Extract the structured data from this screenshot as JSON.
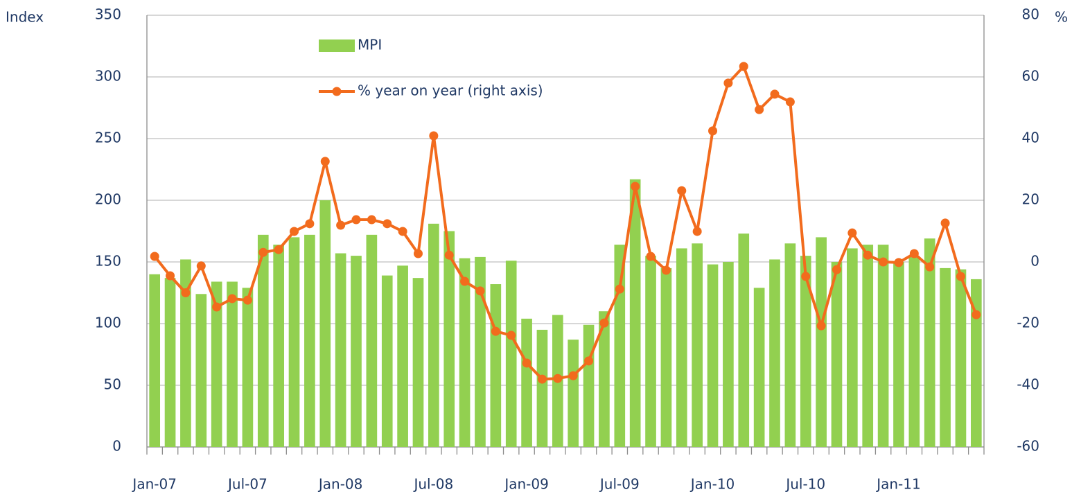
{
  "chart_data": {
    "type": "bar_line",
    "y_label": "Index",
    "y2_label": "%",
    "categories": [
      "Jan-07",
      null,
      null,
      null,
      null,
      null,
      "Jul-07",
      null,
      null,
      null,
      null,
      null,
      "Jan-08",
      null,
      null,
      null,
      null,
      null,
      "Jul-08",
      null,
      null,
      null,
      null,
      null,
      "Jan-09",
      null,
      null,
      null,
      null,
      null,
      "Jul-09",
      null,
      null,
      null,
      null,
      null,
      "Jan-10",
      null,
      null,
      null,
      null,
      null,
      "Jul-10",
      null,
      null,
      null,
      null,
      null,
      "Jan-11",
      null,
      null,
      null,
      null,
      null
    ],
    "series": [
      {
        "name": "MPI",
        "type": "bar",
        "color": "#92d050",
        "axis": "y",
        "values": [
          140,
          137,
          152,
          124,
          134,
          134,
          129,
          172,
          164,
          170,
          172,
          200,
          157,
          155,
          172,
          139,
          147,
          137,
          181,
          175,
          153,
          154,
          132,
          151,
          104,
          95,
          107,
          87,
          99,
          110,
          164,
          217,
          155,
          145,
          161,
          165,
          148,
          150,
          173,
          129,
          152,
          165,
          155,
          170,
          150,
          161,
          164,
          164,
          150,
          155,
          169,
          145,
          144,
          136
        ]
      },
      {
        "name": "% year on year (right axis)",
        "type": "line",
        "color": "#f26b1d",
        "axis": "y2",
        "values": [
          1.8,
          -4.5,
          -10,
          -1.3,
          -14.6,
          -11.9,
          -12.4,
          3.1,
          4,
          9.9,
          12.4,
          32.6,
          11.9,
          13.7,
          13.7,
          12.4,
          9.9,
          2.7,
          40.9,
          2.2,
          -6.3,
          -9.4,
          -22.5,
          -23.8,
          -32.8,
          -38,
          -37.8,
          -36.9,
          -32.1,
          -19.8,
          -8.8,
          24.5,
          1.8,
          -2.7,
          23.1,
          9.9,
          42.5,
          58,
          63.4,
          49.4,
          54.4,
          51.9,
          -4.7,
          -20.7,
          -2.5,
          9.4,
          2.2,
          0,
          -0.2,
          2.7,
          -1.6,
          12.6,
          -4.7,
          -17.1
        ]
      }
    ],
    "ylim": [
      0,
      350
    ],
    "yticks": [
      0,
      50,
      100,
      150,
      200,
      250,
      300,
      350
    ],
    "y2lim": [
      -60,
      80
    ],
    "y2ticks": [
      -60,
      -40,
      -20,
      0,
      20,
      40,
      60,
      80
    ],
    "grid": true
  }
}
